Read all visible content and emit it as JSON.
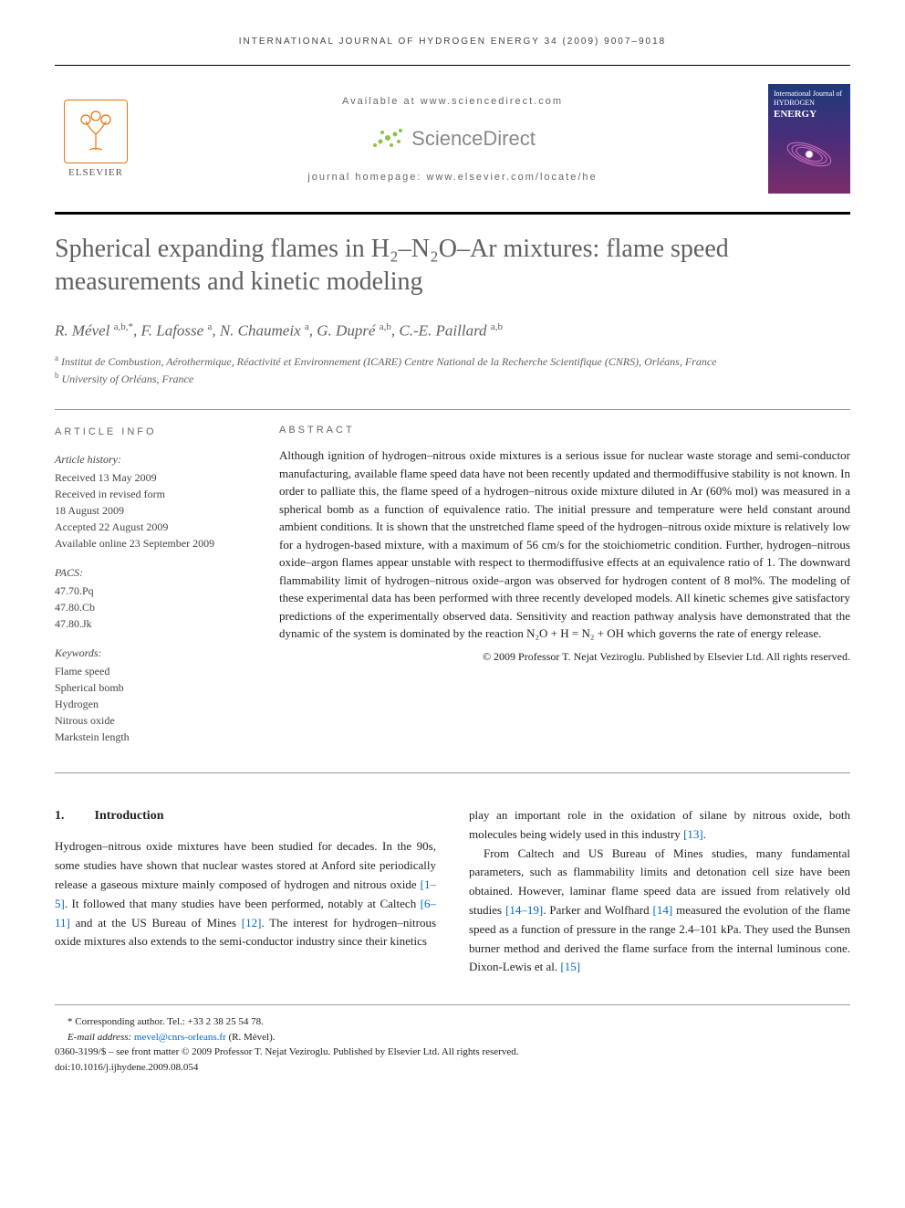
{
  "running_header": "INTERNATIONAL JOURNAL OF HYDROGEN ENERGY 34 (2009) 9007–9018",
  "top": {
    "available": "Available at www.sciencedirect.com",
    "sd_brand": "ScienceDirect",
    "homepage": "journal homepage: www.elsevier.com/locate/he",
    "elsevier": "ELSEVIER",
    "cover_small": "International Journal of",
    "cover_hydrogen": "HYDROGEN",
    "cover_energy": "ENERGY"
  },
  "title": "Spherical expanding flames in H₂–N₂O–Ar mixtures: flame speed measurements and kinetic modeling",
  "authors_html": "R. Mével <sup>a,b,*</sup>, F. Lafosse <sup>a</sup>, N. Chaumeix <sup>a</sup>, G. Dupré <sup>a,b</sup>, C.-E. Paillard <sup>a,b</sup>",
  "affiliations": {
    "a": "Institut de Combustion, Aérothermique, Réactivité et Environnement (ICARE) Centre National de la Recherche Scientifique (CNRS), Orléans, France",
    "b": "University of Orléans, France"
  },
  "info": {
    "heading": "ARTICLE INFO",
    "history_label": "Article history:",
    "received": "Received 13 May 2009",
    "revised1": "Received in revised form",
    "revised2": "18 August 2009",
    "accepted": "Accepted 22 August 2009",
    "online": "Available online 23 September 2009",
    "pacs_label": "PACS:",
    "pacs1": "47.70.Pq",
    "pacs2": "47.80.Cb",
    "pacs3": "47.80.Jk",
    "kw_label": "Keywords:",
    "kw1": "Flame speed",
    "kw2": "Spherical bomb",
    "kw3": "Hydrogen",
    "kw4": "Nitrous oxide",
    "kw5": "Markstein length"
  },
  "abstract": {
    "heading": "ABSTRACT",
    "text": "Although ignition of hydrogen–nitrous oxide mixtures is a serious issue for nuclear waste storage and semi-conductor manufacturing, available flame speed data have not been recently updated and thermodiffusive stability is not known. In order to palliate this, the flame speed of a hydrogen–nitrous oxide mixture diluted in Ar (60% mol) was measured in a spherical bomb as a function of equivalence ratio. The initial pressure and temperature were held constant around ambient conditions. It is shown that the unstretched flame speed of the hydrogen–nitrous oxide mixture is relatively low for a hydrogen-based mixture, with a maximum of 56 cm/s for the stoichiometric condition. Further, hydrogen–nitrous oxide–argon flames appear unstable with respect to thermodiffusive effects at an equivalence ratio of 1. The downward flammability limit of hydrogen–nitrous oxide–argon was observed for hydrogen content of 8 mol%. The modeling of these experimental data has been performed with three recently developed models. All kinetic schemes give satisfactory predictions of the experimentally observed data. Sensitivity and reaction pathway analysis have demonstrated that the dynamic of the system is dominated by the reaction N₂O + H = N₂ + OH which governs the rate of energy release.",
    "copyright": "© 2009 Professor T. Nejat Veziroglu. Published by Elsevier Ltd. All rights reserved."
  },
  "body": {
    "section_num": "1.",
    "section_title": "Introduction",
    "col1_p1a": "Hydrogen–nitrous oxide mixtures have been studied for decades. In the 90s, some studies have shown that nuclear wastes stored at Anford site periodically release a gaseous mixture mainly composed of hydrogen and nitrous oxide ",
    "col1_ref1": "[1–5]",
    "col1_p1b": ". It followed that many studies have been performed, notably at Caltech ",
    "col1_ref2": "[6–11]",
    "col1_p1c": " and at the US Bureau of Mines ",
    "col1_ref3": "[12]",
    "col1_p1d": ". The interest for hydrogen–nitrous oxide mixtures also extends to the semi-conductor industry since their kinetics",
    "col2_p1a": "play an important role in the oxidation of silane by nitrous oxide, both molecules being widely used in this industry ",
    "col2_ref1": "[13]",
    "col2_p1b": ".",
    "col2_p2a": "From Caltech and US Bureau of Mines studies, many fundamental parameters, such as flammability limits and detonation cell size have been obtained. However, laminar flame speed data are issued from relatively old studies ",
    "col2_ref2": "[14–19]",
    "col2_p2b": ". Parker and Wolfhard ",
    "col2_ref3": "[14]",
    "col2_p2c": " measured the evolution of the flame speed as a function of pressure in the range 2.4–101 kPa. They used the Bunsen burner method and derived the flame surface from the internal luminous cone. Dixon-Lewis et al. ",
    "col2_ref4": "[15]"
  },
  "footer": {
    "corr": "* Corresponding author. Tel.: +33 2 38 25 54 78.",
    "email_label": "E-mail address: ",
    "email": "mevel@cnrs-orleans.fr",
    "email_tail": " (R. Mével).",
    "issn": "0360-3199/$ – see front matter © 2009 Professor T. Nejat Veziroglu. Published by Elsevier Ltd. All rights reserved.",
    "doi": "doi:10.1016/j.ijhydene.2009.08.054"
  },
  "colors": {
    "title_gray": "#606060",
    "link_blue": "#0066cc",
    "elsevier_orange": "#e8730c",
    "sd_green": "#8bc34a"
  }
}
